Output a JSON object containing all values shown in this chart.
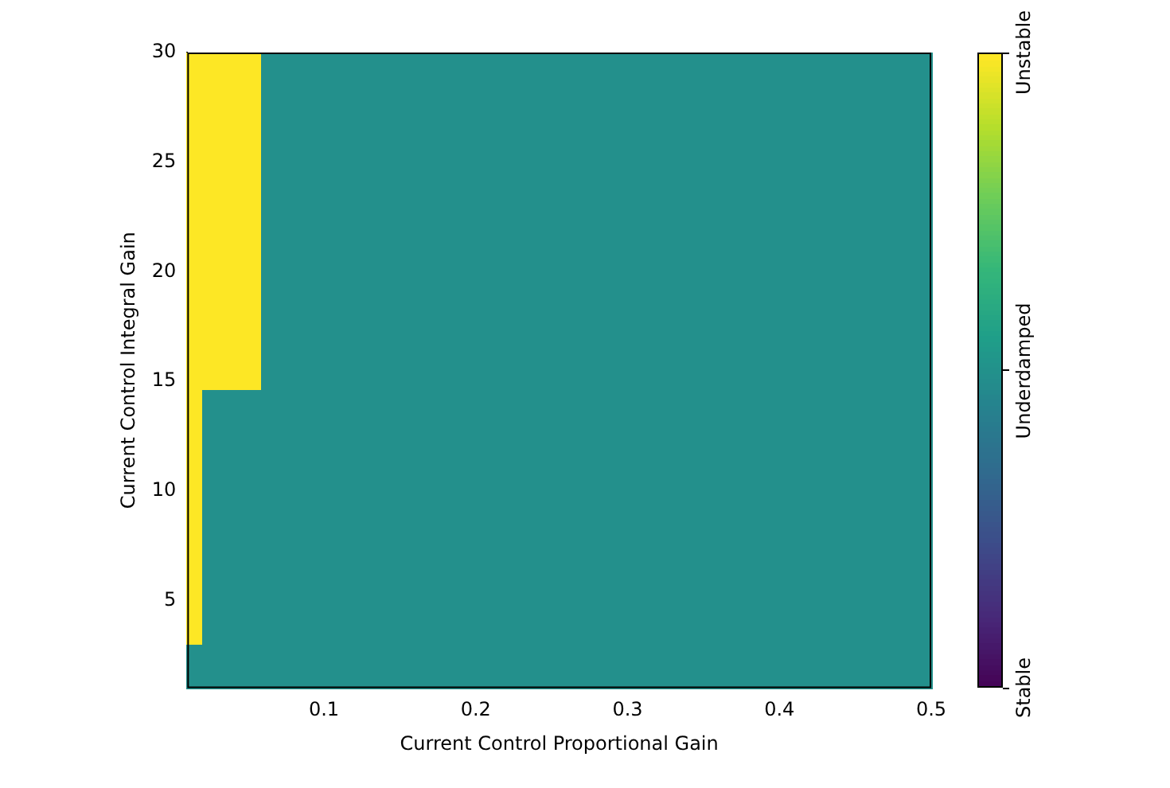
{
  "chart_data": {
    "type": "heatmap",
    "xlabel": "Current Control Proportional Gain",
    "ylabel": "Current Control Integral Gain",
    "xlim": [
      0.01,
      0.5
    ],
    "xticks": [
      0.1,
      0.2,
      0.3,
      0.4,
      0.5
    ],
    "ylim": [
      1,
      30
    ],
    "yticks": [
      5,
      10,
      15,
      20,
      25,
      30
    ],
    "clim": [
      0,
      2
    ],
    "cticks": [
      {
        "value": 0,
        "label": "Stable"
      },
      {
        "value": 1,
        "label": "Underdamped"
      },
      {
        "value": 2,
        "label": "Unstable"
      }
    ],
    "grid": false,
    "cells": [
      [
        2,
        2,
        2,
        2,
        2,
        1,
        1,
        1,
        1,
        1,
        1,
        1,
        1,
        1,
        1,
        1,
        1,
        1,
        1,
        1,
        1,
        1,
        1,
        1,
        1,
        1,
        1,
        1,
        1,
        1,
        1,
        1,
        1,
        1,
        1,
        1,
        1,
        1,
        1,
        1,
        1,
        1,
        1,
        1,
        1,
        1,
        1,
        1,
        1,
        1
      ],
      [
        2,
        2,
        2,
        2,
        2,
        1,
        1,
        1,
        1,
        1,
        1,
        1,
        1,
        1,
        1,
        1,
        1,
        1,
        1,
        1,
        1,
        1,
        1,
        1,
        1,
        1,
        1,
        1,
        1,
        1,
        1,
        1,
        1,
        1,
        1,
        1,
        1,
        1,
        1,
        1,
        1,
        1,
        1,
        1,
        1,
        1,
        1,
        1,
        1,
        1
      ],
      [
        2,
        2,
        2,
        2,
        2,
        1,
        1,
        1,
        1,
        1,
        1,
        1,
        1,
        1,
        1,
        1,
        1,
        1,
        1,
        1,
        1,
        1,
        1,
        1,
        1,
        1,
        1,
        1,
        1,
        1,
        1,
        1,
        1,
        1,
        1,
        1,
        1,
        1,
        1,
        1,
        1,
        1,
        1,
        1,
        1,
        1,
        1,
        1,
        1,
        1
      ],
      [
        2,
        2,
        2,
        2,
        2,
        1,
        1,
        1,
        1,
        1,
        1,
        1,
        1,
        1,
        1,
        1,
        1,
        1,
        1,
        1,
        1,
        1,
        1,
        1,
        1,
        1,
        1,
        1,
        1,
        1,
        1,
        1,
        1,
        1,
        1,
        1,
        1,
        1,
        1,
        1,
        1,
        1,
        1,
        1,
        1,
        1,
        1,
        1,
        1,
        1
      ],
      [
        2,
        2,
        2,
        2,
        2,
        1,
        1,
        1,
        1,
        1,
        1,
        1,
        1,
        1,
        1,
        1,
        1,
        1,
        1,
        1,
        1,
        1,
        1,
        1,
        1,
        1,
        1,
        1,
        1,
        1,
        1,
        1,
        1,
        1,
        1,
        1,
        1,
        1,
        1,
        1,
        1,
        1,
        1,
        1,
        1,
        1,
        1,
        1,
        1,
        1
      ],
      [
        2,
        2,
        2,
        2,
        2,
        1,
        1,
        1,
        1,
        1,
        1,
        1,
        1,
        1,
        1,
        1,
        1,
        1,
        1,
        1,
        1,
        1,
        1,
        1,
        1,
        1,
        1,
        1,
        1,
        1,
        1,
        1,
        1,
        1,
        1,
        1,
        1,
        1,
        1,
        1,
        1,
        1,
        1,
        1,
        1,
        1,
        1,
        1,
        1,
        1
      ],
      [
        2,
        2,
        2,
        2,
        2,
        1,
        1,
        1,
        1,
        1,
        1,
        1,
        1,
        1,
        1,
        1,
        1,
        1,
        1,
        1,
        1,
        1,
        1,
        1,
        1,
        1,
        1,
        1,
        1,
        1,
        1,
        1,
        1,
        1,
        1,
        1,
        1,
        1,
        1,
        1,
        1,
        1,
        1,
        1,
        1,
        1,
        1,
        1,
        1,
        1
      ],
      [
        2,
        2,
        2,
        2,
        2,
        1,
        1,
        1,
        1,
        1,
        1,
        1,
        1,
        1,
        1,
        1,
        1,
        1,
        1,
        1,
        1,
        1,
        1,
        1,
        1,
        1,
        1,
        1,
        1,
        1,
        1,
        1,
        1,
        1,
        1,
        1,
        1,
        1,
        1,
        1,
        1,
        1,
        1,
        1,
        1,
        1,
        1,
        1,
        1,
        1
      ],
      [
        2,
        2,
        2,
        2,
        2,
        1,
        1,
        1,
        1,
        1,
        1,
        1,
        1,
        1,
        1,
        1,
        1,
        1,
        1,
        1,
        1,
        1,
        1,
        1,
        1,
        1,
        1,
        1,
        1,
        1,
        1,
        1,
        1,
        1,
        1,
        1,
        1,
        1,
        1,
        1,
        1,
        1,
        1,
        1,
        1,
        1,
        1,
        1,
        1,
        1
      ],
      [
        2,
        2,
        2,
        2,
        2,
        1,
        1,
        1,
        1,
        1,
        1,
        1,
        1,
        1,
        1,
        1,
        1,
        1,
        1,
        1,
        1,
        1,
        1,
        1,
        1,
        1,
        1,
        1,
        1,
        1,
        1,
        1,
        1,
        1,
        1,
        1,
        1,
        1,
        1,
        1,
        1,
        1,
        1,
        1,
        1,
        1,
        1,
        1,
        1,
        1
      ],
      [
        2,
        2,
        2,
        2,
        2,
        1,
        1,
        1,
        1,
        1,
        1,
        1,
        1,
        1,
        1,
        1,
        1,
        1,
        1,
        1,
        1,
        1,
        1,
        1,
        1,
        1,
        1,
        1,
        1,
        1,
        1,
        1,
        1,
        1,
        1,
        1,
        1,
        1,
        1,
        1,
        1,
        1,
        1,
        1,
        1,
        1,
        1,
        1,
        1,
        1
      ],
      [
        2,
        2,
        2,
        2,
        2,
        1,
        1,
        1,
        1,
        1,
        1,
        1,
        1,
        1,
        1,
        1,
        1,
        1,
        1,
        1,
        1,
        1,
        1,
        1,
        1,
        1,
        1,
        1,
        1,
        1,
        1,
        1,
        1,
        1,
        1,
        1,
        1,
        1,
        1,
        1,
        1,
        1,
        1,
        1,
        1,
        1,
        1,
        1,
        1,
        1
      ],
      [
        2,
        2,
        2,
        2,
        2,
        1,
        1,
        1,
        1,
        1,
        1,
        1,
        1,
        1,
        1,
        1,
        1,
        1,
        1,
        1,
        1,
        1,
        1,
        1,
        1,
        1,
        1,
        1,
        1,
        1,
        1,
        1,
        1,
        1,
        1,
        1,
        1,
        1,
        1,
        1,
        1,
        1,
        1,
        1,
        1,
        1,
        1,
        1,
        1,
        1
      ],
      [
        2,
        2,
        2,
        2,
        2,
        1,
        1,
        1,
        1,
        1,
        1,
        1,
        1,
        1,
        1,
        1,
        1,
        1,
        1,
        1,
        1,
        1,
        1,
        1,
        1,
        1,
        1,
        1,
        1,
        1,
        1,
        1,
        1,
        1,
        1,
        1,
        1,
        1,
        1,
        1,
        1,
        1,
        1,
        1,
        1,
        1,
        1,
        1,
        1,
        1
      ],
      [
        2,
        2,
        2,
        2,
        2,
        1,
        1,
        1,
        1,
        1,
        1,
        1,
        1,
        1,
        1,
        1,
        1,
        1,
        1,
        1,
        1,
        1,
        1,
        1,
        1,
        1,
        1,
        1,
        1,
        1,
        1,
        1,
        1,
        1,
        1,
        1,
        1,
        1,
        1,
        1,
        1,
        1,
        1,
        1,
        1,
        1,
        1,
        1,
        1,
        1
      ],
      [
        2,
        2,
        2,
        2,
        2,
        1,
        1,
        1,
        1,
        1,
        1,
        1,
        1,
        1,
        1,
        1,
        1,
        1,
        1,
        1,
        1,
        1,
        1,
        1,
        1,
        1,
        1,
        1,
        1,
        1,
        1,
        1,
        1,
        1,
        1,
        1,
        1,
        1,
        1,
        1,
        1,
        1,
        1,
        1,
        1,
        1,
        1,
        1,
        1,
        1
      ],
      [
        2,
        1,
        1,
        1,
        1,
        1,
        1,
        1,
        1,
        1,
        1,
        1,
        1,
        1,
        1,
        1,
        1,
        1,
        1,
        1,
        1,
        1,
        1,
        1,
        1,
        1,
        1,
        1,
        1,
        1,
        1,
        1,
        1,
        1,
        1,
        1,
        1,
        1,
        1,
        1,
        1,
        1,
        1,
        1,
        1,
        1,
        1,
        1,
        1,
        1
      ],
      [
        2,
        1,
        1,
        1,
        1,
        1,
        1,
        1,
        1,
        1,
        1,
        1,
        1,
        1,
        1,
        1,
        1,
        1,
        1,
        1,
        1,
        1,
        1,
        1,
        1,
        1,
        1,
        1,
        1,
        1,
        1,
        1,
        1,
        1,
        1,
        1,
        1,
        1,
        1,
        1,
        1,
        1,
        1,
        1,
        1,
        1,
        1,
        1,
        1,
        1
      ],
      [
        2,
        1,
        1,
        1,
        1,
        1,
        1,
        1,
        1,
        1,
        1,
        1,
        1,
        1,
        1,
        1,
        1,
        1,
        1,
        1,
        1,
        1,
        1,
        1,
        1,
        1,
        1,
        1,
        1,
        1,
        1,
        1,
        1,
        1,
        1,
        1,
        1,
        1,
        1,
        1,
        1,
        1,
        1,
        1,
        1,
        1,
        1,
        1,
        1,
        1
      ],
      [
        2,
        1,
        1,
        1,
        1,
        1,
        1,
        1,
        1,
        1,
        1,
        1,
        1,
        1,
        1,
        1,
        1,
        1,
        1,
        1,
        1,
        1,
        1,
        1,
        1,
        1,
        1,
        1,
        1,
        1,
        1,
        1,
        1,
        1,
        1,
        1,
        1,
        1,
        1,
        1,
        1,
        1,
        1,
        1,
        1,
        1,
        1,
        1,
        1,
        1
      ],
      [
        2,
        1,
        1,
        1,
        1,
        1,
        1,
        1,
        1,
        1,
        1,
        1,
        1,
        1,
        1,
        1,
        1,
        1,
        1,
        1,
        1,
        1,
        1,
        1,
        1,
        1,
        1,
        1,
        1,
        1,
        1,
        1,
        1,
        1,
        1,
        1,
        1,
        1,
        1,
        1,
        1,
        1,
        1,
        1,
        1,
        1,
        1,
        1,
        1,
        1
      ],
      [
        2,
        1,
        1,
        1,
        1,
        1,
        1,
        1,
        1,
        1,
        1,
        1,
        1,
        1,
        1,
        1,
        1,
        1,
        1,
        1,
        1,
        1,
        1,
        1,
        1,
        1,
        1,
        1,
        1,
        1,
        1,
        1,
        1,
        1,
        1,
        1,
        1,
        1,
        1,
        1,
        1,
        1,
        1,
        1,
        1,
        1,
        1,
        1,
        1,
        1
      ],
      [
        2,
        1,
        1,
        1,
        1,
        1,
        1,
        1,
        1,
        1,
        1,
        1,
        1,
        1,
        1,
        1,
        1,
        1,
        1,
        1,
        1,
        1,
        1,
        1,
        1,
        1,
        1,
        1,
        1,
        1,
        1,
        1,
        1,
        1,
        1,
        1,
        1,
        1,
        1,
        1,
        1,
        1,
        1,
        1,
        1,
        1,
        1,
        1,
        1,
        1
      ],
      [
        2,
        1,
        1,
        1,
        1,
        1,
        1,
        1,
        1,
        1,
        1,
        1,
        1,
        1,
        1,
        1,
        1,
        1,
        1,
        1,
        1,
        1,
        1,
        1,
        1,
        1,
        1,
        1,
        1,
        1,
        1,
        1,
        1,
        1,
        1,
        1,
        1,
        1,
        1,
        1,
        1,
        1,
        1,
        1,
        1,
        1,
        1,
        1,
        1,
        1
      ],
      [
        2,
        1,
        1,
        1,
        1,
        1,
        1,
        1,
        1,
        1,
        1,
        1,
        1,
        1,
        1,
        1,
        1,
        1,
        1,
        1,
        1,
        1,
        1,
        1,
        1,
        1,
        1,
        1,
        1,
        1,
        1,
        1,
        1,
        1,
        1,
        1,
        1,
        1,
        1,
        1,
        1,
        1,
        1,
        1,
        1,
        1,
        1,
        1,
        1,
        1
      ],
      [
        2,
        1,
        1,
        1,
        1,
        1,
        1,
        1,
        1,
        1,
        1,
        1,
        1,
        1,
        1,
        1,
        1,
        1,
        1,
        1,
        1,
        1,
        1,
        1,
        1,
        1,
        1,
        1,
        1,
        1,
        1,
        1,
        1,
        1,
        1,
        1,
        1,
        1,
        1,
        1,
        1,
        1,
        1,
        1,
        1,
        1,
        1,
        1,
        1,
        1
      ],
      [
        2,
        1,
        1,
        1,
        1,
        1,
        1,
        1,
        1,
        1,
        1,
        1,
        1,
        1,
        1,
        1,
        1,
        1,
        1,
        1,
        1,
        1,
        1,
        1,
        1,
        1,
        1,
        1,
        1,
        1,
        1,
        1,
        1,
        1,
        1,
        1,
        1,
        1,
        1,
        1,
        1,
        1,
        1,
        1,
        1,
        1,
        1,
        1,
        1,
        1
      ],
      [
        2,
        1,
        1,
        1,
        1,
        1,
        1,
        1,
        1,
        1,
        1,
        1,
        1,
        1,
        1,
        1,
        1,
        1,
        1,
        1,
        1,
        1,
        1,
        1,
        1,
        1,
        1,
        1,
        1,
        1,
        1,
        1,
        1,
        1,
        1,
        1,
        1,
        1,
        1,
        1,
        1,
        1,
        1,
        1,
        1,
        1,
        1,
        1,
        1,
        1
      ],
      [
        1,
        1,
        1,
        1,
        1,
        1,
        1,
        1,
        1,
        1,
        1,
        1,
        1,
        1,
        1,
        1,
        1,
        1,
        1,
        1,
        1,
        1,
        1,
        1,
        1,
        1,
        1,
        1,
        1,
        1,
        1,
        1,
        1,
        1,
        1,
        1,
        1,
        1,
        1,
        1,
        1,
        1,
        1,
        1,
        1,
        1,
        1,
        1,
        1,
        1
      ],
      [
        1,
        1,
        1,
        1,
        1,
        1,
        1,
        1,
        1,
        1,
        1,
        1,
        1,
        1,
        1,
        1,
        1,
        1,
        1,
        1,
        1,
        1,
        1,
        1,
        1,
        1,
        1,
        1,
        1,
        1,
        1,
        1,
        1,
        1,
        1,
        1,
        1,
        1,
        1,
        1,
        1,
        1,
        1,
        1,
        1,
        1,
        1,
        1,
        1,
        1
      ]
    ]
  }
}
